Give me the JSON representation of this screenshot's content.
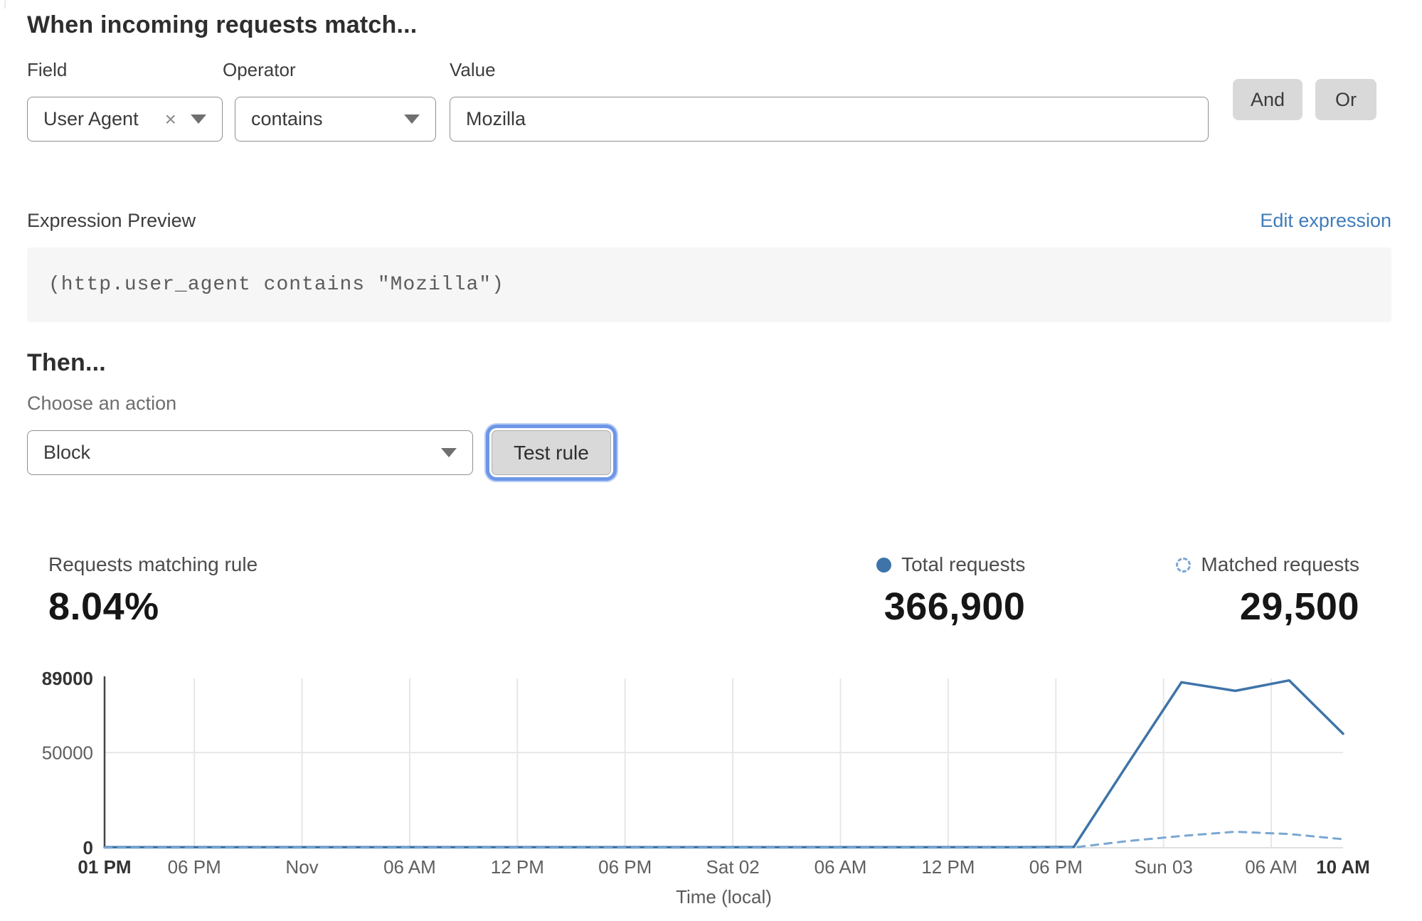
{
  "form": {
    "heading": "When incoming requests match...",
    "field": {
      "label": "Field",
      "value": "User Agent"
    },
    "operator": {
      "label": "Operator",
      "value": "contains"
    },
    "value": {
      "label": "Value",
      "value": "Mozilla"
    },
    "and_label": "And",
    "or_label": "Or"
  },
  "expression": {
    "preview_label": "Expression Preview",
    "edit_link": "Edit expression",
    "code": "(http.user_agent contains \"Mozilla\")"
  },
  "action": {
    "heading": "Then...",
    "choose_label": "Choose an action",
    "selected": "Block",
    "test_button": "Test rule"
  },
  "stats": {
    "matching": {
      "label": "Requests matching rule",
      "value": "8.04%"
    },
    "total": {
      "label": "Total requests",
      "value": "366,900"
    },
    "matched": {
      "label": "Matched requests",
      "value": "29,500"
    }
  },
  "colors": {
    "total_series": "#3e74a8",
    "matched_series": "#7aa7d2",
    "link_blue": "#3f7cb9",
    "focus_ring": "#6d96e8"
  },
  "chart_data": {
    "type": "line",
    "title": "",
    "xlabel": "Time (local)",
    "ylabel": "",
    "ylim": [
      0,
      89000
    ],
    "grid": true,
    "legend_position": "top-right",
    "y_ticks": [
      {
        "value": 0,
        "label": "0",
        "bold": true
      },
      {
        "value": 50000,
        "label": "50000",
        "bold": false
      },
      {
        "value": 89000,
        "label": "89000",
        "bold": true
      }
    ],
    "y_gridlines": [
      50000
    ],
    "x_total_hours": 69,
    "x_ticks": [
      {
        "label": "01 PM",
        "t": 0,
        "bold": true,
        "grid": false
      },
      {
        "label": "06 PM",
        "t": 5,
        "bold": false,
        "grid": true
      },
      {
        "label": "Nov",
        "t": 11,
        "bold": false,
        "grid": true
      },
      {
        "label": "06 AM",
        "t": 17,
        "bold": false,
        "grid": true
      },
      {
        "label": "12 PM",
        "t": 23,
        "bold": false,
        "grid": true
      },
      {
        "label": "06 PM",
        "t": 29,
        "bold": false,
        "grid": true
      },
      {
        "label": "Sat 02",
        "t": 35,
        "bold": false,
        "grid": true
      },
      {
        "label": "06 AM",
        "t": 41,
        "bold": false,
        "grid": true
      },
      {
        "label": "12 PM",
        "t": 47,
        "bold": false,
        "grid": true
      },
      {
        "label": "06 PM",
        "t": 53,
        "bold": false,
        "grid": true
      },
      {
        "label": "Sun 03",
        "t": 59,
        "bold": false,
        "grid": true
      },
      {
        "label": "06 AM",
        "t": 65,
        "bold": false,
        "grid": true
      },
      {
        "label": "10 AM",
        "t": 69,
        "bold": true,
        "grid": false
      }
    ],
    "x_step_hours": 3,
    "series": [
      {
        "name": "Total requests",
        "style": "solid",
        "color": "#3e74a8",
        "values": [
          300,
          300,
          300,
          300,
          300,
          300,
          300,
          300,
          300,
          300,
          300,
          300,
          300,
          300,
          300,
          300,
          300,
          300,
          400,
          44000,
          87000,
          82500,
          88000,
          60000
        ]
      },
      {
        "name": "Matched requests",
        "style": "dashed",
        "color": "#7aa7d2",
        "values": [
          50,
          50,
          50,
          50,
          50,
          50,
          50,
          50,
          50,
          50,
          50,
          50,
          50,
          50,
          50,
          50,
          50,
          50,
          150,
          3500,
          6200,
          8400,
          7200,
          4500
        ]
      }
    ]
  }
}
